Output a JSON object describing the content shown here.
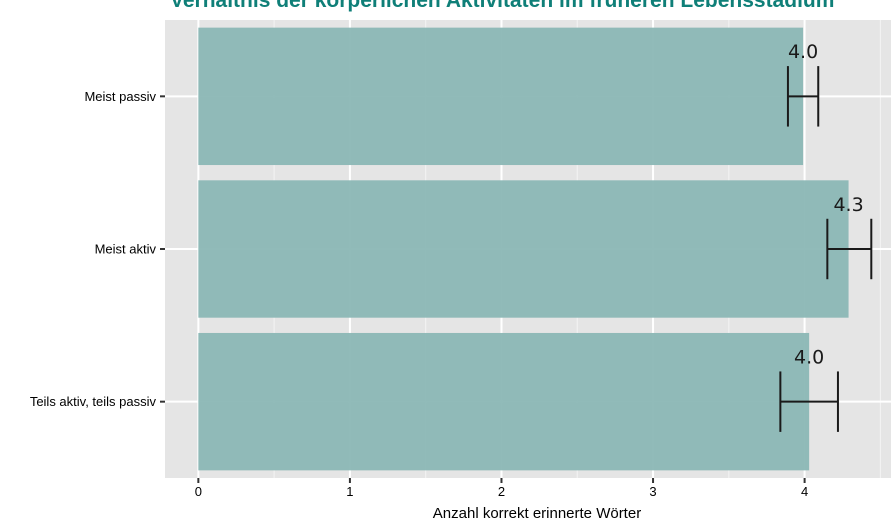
{
  "chart_data": {
    "type": "bar",
    "orientation": "horizontal",
    "title": "Verhältnis der körperlichen Aktivitäten im früheren Lebensstadium",
    "xlabel": "Anzahl korrekt erinnerte Wörter",
    "ylabel": "",
    "categories": [
      "Meist passiv",
      "Meist aktiv",
      "Teils aktiv, teils passiv"
    ],
    "values": [
      3.99,
      4.29,
      4.03
    ],
    "data_labels": [
      "4.0",
      "4.3",
      "4.0"
    ],
    "error_low": [
      3.89,
      4.15,
      3.84
    ],
    "error_high": [
      4.09,
      4.44,
      4.22
    ],
    "xlim": [
      -0.22,
      4.57
    ],
    "x_ticks": [
      "0",
      "1",
      "2",
      "3",
      "4"
    ],
    "grid": true,
    "bar_color": "#8bb7b5",
    "panel_color": "#e5e5e5",
    "title_color": "#0f7f78"
  }
}
